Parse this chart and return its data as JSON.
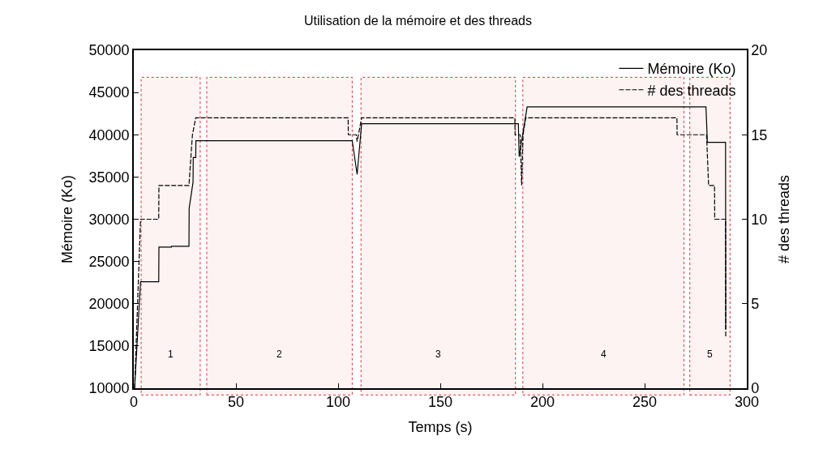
{
  "chart_data": {
    "type": "line",
    "title": "Utilisation de la mémoire et des threads",
    "xlabel": "Temps (s)",
    "ylabel": "Mémoire (Ko)",
    "y2label": "# des threads",
    "xlim": [
      0,
      300
    ],
    "xticks": [
      0,
      50,
      100,
      150,
      200,
      250,
      300
    ],
    "ylim": [
      10000,
      50000
    ],
    "yticks": [
      10000,
      15000,
      20000,
      25000,
      30000,
      35000,
      40000,
      45000,
      50000
    ],
    "y2lim": [
      0,
      20
    ],
    "y2ticks": [
      0,
      5,
      10,
      15,
      20
    ],
    "grid": false,
    "legend": "top right",
    "marker": "none",
    "series": [
      {
        "name": "Mémoire (Ko)",
        "color": "#000000",
        "line_style": "solid",
        "x": [
          0.4,
          3.3,
          12.2,
          12.3,
          18.4,
          18.5,
          27,
          27.1,
          29,
          29.1,
          30.3,
          30.4,
          106.9,
          109.3,
          111.5,
          188.2,
          188.6,
          192.5,
          280,
          280.7,
          289.6,
          289.7
        ],
        "values": [
          10000,
          22600,
          22600,
          26700,
          26700,
          26800,
          26800,
          31300,
          34400,
          37300,
          37300,
          39300,
          39300,
          35300,
          41300,
          41300,
          37400,
          43300,
          43300,
          39100,
          39100,
          17000
        ]
      },
      {
        "name": "# des threads",
        "color": "#000000",
        "line_style": "dashed",
        "axis": "y2",
        "x": [
          0.4,
          3.3,
          12.2,
          12.3,
          27,
          28.7,
          30.3,
          104.9,
          105,
          108.9,
          109.3,
          111.5,
          186.5,
          186.6,
          189.1,
          189.8,
          190.5,
          191.8,
          265.8,
          265.9,
          280.3,
          281.3,
          284.2,
          284.3,
          289.6,
          289.7
        ],
        "values": [
          0,
          10,
          10,
          12,
          12,
          15,
          16,
          16,
          15,
          15,
          14.6,
          16,
          16,
          15,
          15,
          12,
          15,
          16,
          16,
          15,
          15,
          12,
          12,
          10,
          10,
          3
        ]
      }
    ],
    "bands": [
      {
        "axis": "x",
        "from": 3.6,
        "to": 32.5,
        "label": "1",
        "color": "#e03030"
      },
      {
        "axis": "x",
        "from": 35.7,
        "to": 106.9,
        "label": "2",
        "color": "#e03030"
      },
      {
        "axis": "x",
        "from": 111.2,
        "to": 186.8,
        "label": "3",
        "color": "#e03030"
      },
      {
        "axis": "x",
        "from": 190.4,
        "to": 269.2,
        "label": "4",
        "color": "#e03030"
      },
      {
        "axis": "x",
        "from": 272.1,
        "to": 291.8,
        "label": "5",
        "color": "#e03030"
      }
    ]
  }
}
